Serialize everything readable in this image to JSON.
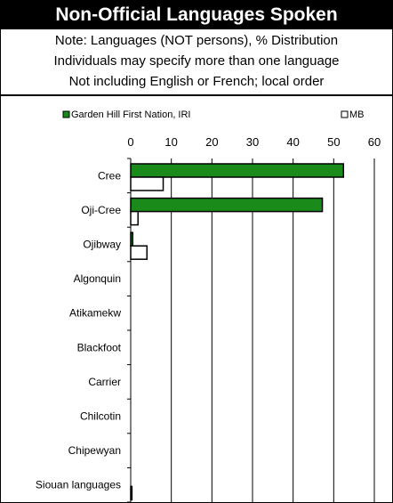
{
  "header": {
    "title": "Non-Official Languages Spoken",
    "notes": [
      "Note: Languages (NOT persons), % Distribution",
      "Individuals may specify more than one language",
      "Not including English or French; local order"
    ]
  },
  "chart_data": {
    "type": "bar",
    "orientation": "horizontal",
    "categories": [
      "Cree",
      "Oji-Cree",
      "Ojibway",
      "Algonquin",
      "Atikamekw",
      "Blackfoot",
      "Carrier",
      "Chilcotin",
      "Chipewyan",
      "Siouan languages"
    ],
    "series": [
      {
        "name": "Garden Hill First Nation, IRI",
        "color": "#1a8a1a",
        "values": [
          52.4,
          47.2,
          0.5,
          0,
          0,
          0,
          0,
          0,
          0,
          0
        ]
      },
      {
        "name": "MB",
        "color": "#ffffff",
        "values": [
          8.0,
          1.8,
          4.0,
          0,
          0,
          0,
          0,
          0,
          0,
          0.3
        ]
      }
    ],
    "xlim": [
      0,
      60
    ],
    "xticks": [
      0,
      10,
      20,
      30,
      40,
      50,
      60
    ],
    "grid": true,
    "legend_position": "top"
  }
}
